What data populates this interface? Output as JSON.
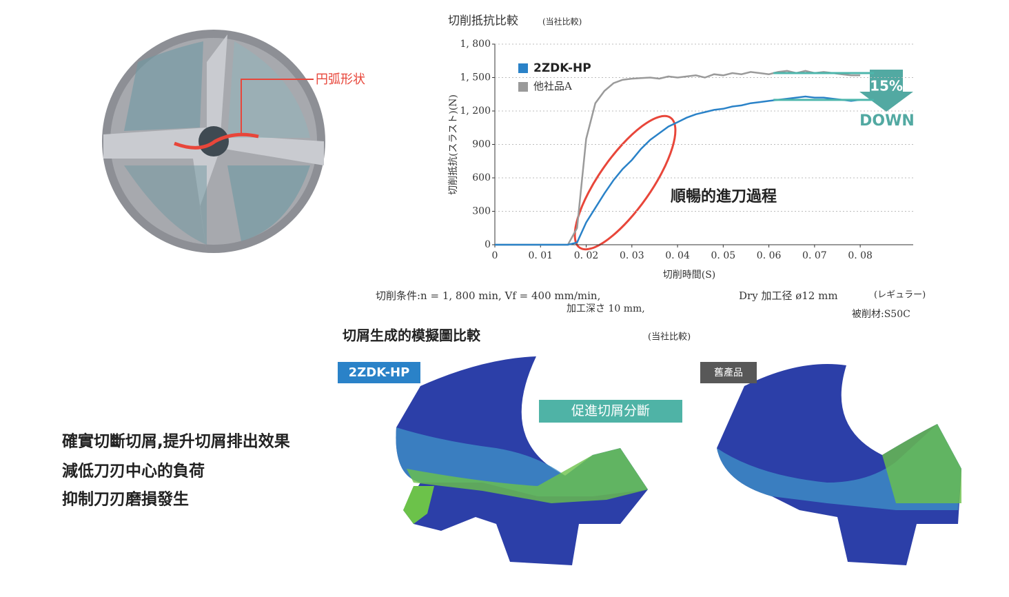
{
  "drill_label": "円弧形状",
  "chart_data": {
    "type": "line",
    "title": "切削抵抗比較",
    "subtitle": "(当社比較)",
    "x_label": "切削時間(S)",
    "y_label": "切削抵抗(スラスト)(N)",
    "x": [
      0,
      0.002,
      0.004,
      0.006,
      0.008,
      0.01,
      0.012,
      0.014,
      0.016,
      0.018,
      0.02,
      0.022,
      0.024,
      0.026,
      0.028,
      0.03,
      0.032,
      0.034,
      0.036,
      0.038,
      0.04,
      0.042,
      0.044,
      0.046,
      0.048,
      0.05,
      0.052,
      0.054,
      0.056,
      0.058,
      0.06,
      0.062,
      0.064,
      0.066,
      0.068,
      0.07,
      0.072,
      0.074,
      0.076,
      0.078,
      0.08
    ],
    "series": [
      {
        "name": "2ZDK-HP",
        "color": "#2a82c8",
        "values": [
          0,
          0,
          0,
          0,
          0,
          0,
          0,
          0,
          0,
          20,
          200,
          330,
          460,
          580,
          680,
          760,
          860,
          940,
          1000,
          1060,
          1100,
          1140,
          1170,
          1190,
          1210,
          1220,
          1240,
          1250,
          1270,
          1280,
          1290,
          1300,
          1310,
          1320,
          1330,
          1320,
          1320,
          1310,
          1300,
          1290,
          1300
        ]
      },
      {
        "name": "他社品A",
        "color": "#9a9a9a",
        "values": [
          0,
          0,
          0,
          0,
          0,
          0,
          0,
          0,
          0,
          150,
          950,
          1270,
          1380,
          1450,
          1480,
          1490,
          1495,
          1500,
          1490,
          1510,
          1500,
          1510,
          1520,
          1500,
          1530,
          1520,
          1540,
          1530,
          1550,
          1540,
          1530,
          1550,
          1560,
          1540,
          1560,
          1540,
          1550,
          1540,
          1530,
          1520,
          1520
        ]
      }
    ],
    "reference_lines": {
      "color": "#4db6ac",
      "values": [
        1540,
        1300
      ],
      "x_range": [
        0.061,
        0.083
      ]
    },
    "xlim": [
      0,
      0.0916
    ],
    "ylim": [
      0,
      1800
    ],
    "xticks": [
      0,
      {
        "value": 0.01,
        "label": "0. 01"
      },
      {
        "value": 0.02,
        "label": "0. 02"
      },
      {
        "value": 0.03,
        "label": "0. 03"
      },
      {
        "value": 0.04,
        "label": "0. 04"
      },
      {
        "value": 0.05,
        "label": "0. 05"
      },
      {
        "value": 0.06,
        "label": "0. 06"
      },
      {
        "value": 0.07,
        "label": "0. 07"
      },
      {
        "value": 0.08,
        "label": "0. 08"
      }
    ],
    "yticks": [
      0,
      300,
      600,
      900,
      {
        "value": 1200,
        "label": "1, 200"
      },
      {
        "value": 1500,
        "label": "1, 500"
      },
      {
        "value": 1800,
        "label": "1, 800"
      }
    ],
    "grid": true,
    "annotations": [
      "順暢的進刀過程",
      "15%",
      "DOWN"
    ]
  },
  "conditions": {
    "main": "切削条件:n = 1, 800 min, Vf = 400 mm/min,",
    "depth": "加工深さ 10 mm,",
    "dry": "Dry 加工径 ø12 mm",
    "type": "(レギュラー)",
    "material": "被削材:S50C"
  },
  "simulation": {
    "title": "切屑生成的模擬圖比較",
    "note": "(当社比較)",
    "label_new": "2ZDK-HP",
    "label_old": "舊產品",
    "callout": "促進切屑分斷"
  },
  "bullets": [
    "確實切斷切屑,提升切屑排出效果",
    "減低刀刃中心的負荷",
    "抑制刀刃磨損發生"
  ]
}
